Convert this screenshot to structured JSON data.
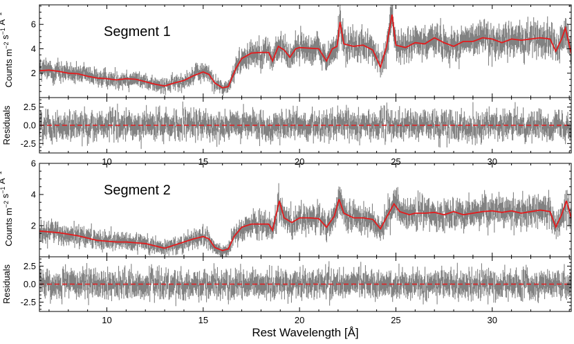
{
  "chart_data": {
    "type": "line",
    "xlabel": "Rest Wavelength [Å]",
    "xlim": [
      6.5,
      34.1
    ],
    "xticks": [
      "10",
      "15",
      "20",
      "25",
      "30"
    ],
    "xtick_values": [
      10,
      15,
      20,
      25,
      30
    ],
    "panels": [
      {
        "id": "seg1-spectrum",
        "annotation": "Segment 1",
        "ylabel": "Counts m$^{-2}$ s$^{-1}$ Å$^{-1}$",
        "ylim": [
          0,
          7.6
        ],
        "yticks": [
          "2",
          "4",
          "6"
        ],
        "ytick_values": [
          2,
          4,
          6
        ],
        "series": [
          {
            "role": "data",
            "color": "#808080"
          },
          {
            "role": "model",
            "color": "#e41a1c",
            "points": [
              [
                6.5,
                2.2
              ],
              [
                7,
                2.25
              ],
              [
                7.5,
                2.15
              ],
              [
                8,
                2.0
              ],
              [
                8.5,
                1.95
              ],
              [
                9,
                1.75
              ],
              [
                9.5,
                1.6
              ],
              [
                10,
                1.55
              ],
              [
                10.5,
                1.45
              ],
              [
                11,
                1.55
              ],
              [
                11.5,
                1.5
              ],
              [
                12,
                1.3
              ],
              [
                12.5,
                1.1
              ],
              [
                13,
                0.95
              ],
              [
                13.5,
                1.2
              ],
              [
                14,
                1.4
              ],
              [
                14.5,
                1.8
              ],
              [
                15,
                2.1
              ],
              [
                15.3,
                1.9
              ],
              [
                15.6,
                1.2
              ],
              [
                16,
                0.8
              ],
              [
                16.3,
                0.9
              ],
              [
                16.7,
                2.4
              ],
              [
                17,
                3.2
              ],
              [
                17.5,
                3.65
              ],
              [
                18,
                3.7
              ],
              [
                18.4,
                3.7
              ],
              [
                18.6,
                3.0
              ],
              [
                18.9,
                4.2
              ],
              [
                19.2,
                3.9
              ],
              [
                19.5,
                3.3
              ],
              [
                19.8,
                4.0
              ],
              [
                20,
                4.1
              ],
              [
                20.5,
                4.05
              ],
              [
                21,
                4.0
              ],
              [
                21.4,
                3.0
              ],
              [
                21.7,
                4.0
              ],
              [
                21.95,
                4.2
              ],
              [
                22.1,
                6.2
              ],
              [
                22.3,
                4.4
              ],
              [
                22.8,
                4.2
              ],
              [
                23.3,
                4.3
              ],
              [
                23.8,
                3.9
              ],
              [
                24.2,
                2.5
              ],
              [
                24.5,
                4.1
              ],
              [
                24.8,
                6.8
              ],
              [
                25,
                4.3
              ],
              [
                25.5,
                4.1
              ],
              [
                26,
                4.5
              ],
              [
                26.5,
                4.4
              ],
              [
                27,
                4.9
              ],
              [
                27.5,
                4.5
              ],
              [
                28,
                4.2
              ],
              [
                28.5,
                4.6
              ],
              [
                29,
                4.6
              ],
              [
                29.5,
                4.9
              ],
              [
                30,
                4.8
              ],
              [
                30.5,
                4.5
              ],
              [
                31,
                4.8
              ],
              [
                31.5,
                4.7
              ],
              [
                32,
                4.8
              ],
              [
                32.5,
                4.9
              ],
              [
                33,
                4.8
              ],
              [
                33.3,
                3.8
              ],
              [
                33.6,
                4.8
              ],
              [
                33.8,
                5.7
              ],
              [
                34.1,
                3.6
              ]
            ]
          }
        ]
      },
      {
        "id": "seg1-residuals",
        "ylabel": "Residuals",
        "ylim": [
          -3.8,
          3.8
        ],
        "yticks": [
          "2.5",
          "0.0",
          "-2.5"
        ],
        "ytick_values": [
          2.5,
          0.0,
          -2.5
        ],
        "series": [
          {
            "role": "data",
            "color": "#808080"
          },
          {
            "role": "zero-line",
            "color": "#e41a1c",
            "points": [
              [
                6.5,
                0
              ],
              [
                34.1,
                0
              ]
            ]
          }
        ]
      },
      {
        "id": "seg2-spectrum",
        "annotation": "Segment 2",
        "ylabel": "Counts m$^{-2}$ s$^{-1}$ Å$^{-1}$",
        "ylim": [
          0,
          6.0
        ],
        "yticks": [
          "2",
          "4",
          "6"
        ],
        "ytick_values": [
          2,
          4,
          6
        ],
        "series": [
          {
            "role": "data",
            "color": "#808080"
          },
          {
            "role": "model",
            "color": "#e41a1c",
            "points": [
              [
                6.5,
                1.65
              ],
              [
                7,
                1.6
              ],
              [
                7.5,
                1.55
              ],
              [
                8,
                1.45
              ],
              [
                8.5,
                1.35
              ],
              [
                9,
                1.2
              ],
              [
                9.5,
                1.05
              ],
              [
                10,
                1.0
              ],
              [
                10.5,
                0.95
              ],
              [
                11,
                0.95
              ],
              [
                11.5,
                0.9
              ],
              [
                12,
                0.85
              ],
              [
                12.5,
                0.7
              ],
              [
                13,
                0.55
              ],
              [
                13.5,
                0.75
              ],
              [
                14,
                0.95
              ],
              [
                14.5,
                1.15
              ],
              [
                15,
                1.3
              ],
              [
                15.3,
                1.15
              ],
              [
                15.6,
                0.6
              ],
              [
                16,
                0.4
              ],
              [
                16.3,
                0.5
              ],
              [
                16.6,
                1.3
              ],
              [
                17,
                1.9
              ],
              [
                17.5,
                2.1
              ],
              [
                18,
                2.1
              ],
              [
                18.4,
                2.1
              ],
              [
                18.6,
                1.7
              ],
              [
                18.95,
                3.6
              ],
              [
                19.2,
                2.5
              ],
              [
                19.6,
                2.2
              ],
              [
                20,
                2.5
              ],
              [
                20.5,
                2.5
              ],
              [
                21,
                2.45
              ],
              [
                21.4,
                1.9
              ],
              [
                21.8,
                2.6
              ],
              [
                22.05,
                3.7
              ],
              [
                22.3,
                2.8
              ],
              [
                22.8,
                2.5
              ],
              [
                23.3,
                2.5
              ],
              [
                23.8,
                2.4
              ],
              [
                24.2,
                1.8
              ],
              [
                24.5,
                2.5
              ],
              [
                24.9,
                3.4
              ],
              [
                25.2,
                2.9
              ],
              [
                25.7,
                2.7
              ],
              [
                26,
                2.8
              ],
              [
                26.5,
                2.8
              ],
              [
                27,
                2.85
              ],
              [
                27.5,
                2.7
              ],
              [
                28,
                2.9
              ],
              [
                28.5,
                2.7
              ],
              [
                29,
                2.8
              ],
              [
                29.5,
                2.9
              ],
              [
                30,
                2.95
              ],
              [
                30.5,
                2.85
              ],
              [
                31,
                2.95
              ],
              [
                31.5,
                2.8
              ],
              [
                32,
                2.9
              ],
              [
                32.5,
                3.0
              ],
              [
                33,
                2.9
              ],
              [
                33.3,
                1.9
              ],
              [
                33.6,
                2.7
              ],
              [
                33.85,
                3.6
              ],
              [
                34.1,
                2.5
              ]
            ]
          }
        ]
      },
      {
        "id": "seg2-residuals",
        "ylabel": "Residuals",
        "ylim": [
          -3.8,
          3.8
        ],
        "yticks": [
          "2.5",
          "0.0",
          "-2.5"
        ],
        "ytick_values": [
          2.5,
          0.0,
          -2.5
        ],
        "series": [
          {
            "role": "data",
            "color": "#808080"
          },
          {
            "role": "zero-line",
            "color": "#e41a1c",
            "points": [
              [
                6.5,
                0
              ],
              [
                34.1,
                0
              ]
            ]
          }
        ]
      }
    ]
  }
}
